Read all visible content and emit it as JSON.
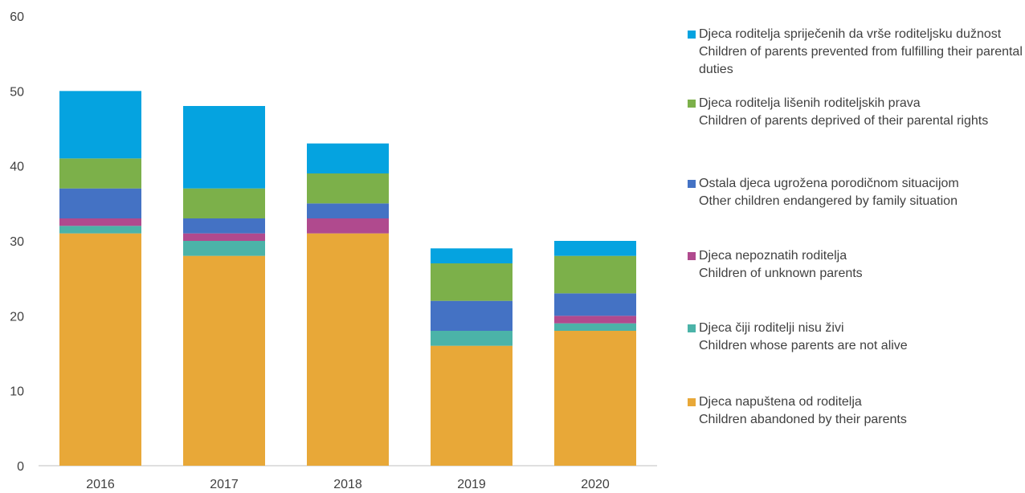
{
  "chart_data": {
    "type": "bar",
    "stacked": true,
    "categories": [
      "2016",
      "2017",
      "2018",
      "2019",
      "2020"
    ],
    "ylim": [
      0,
      60
    ],
    "yticks": [
      0,
      10,
      20,
      30,
      40,
      50,
      60
    ],
    "grid": false,
    "legend_position": "right",
    "series": [
      {
        "name": "Djeca napuštena od roditelja",
        "name_en": "Children abandoned by their parents",
        "color": "#E8A838",
        "values": [
          31,
          28,
          31,
          16,
          18
        ]
      },
      {
        "name": "Djeca čiji roditelji nisu živi",
        "name_en": "Children  whose parents are not alive",
        "color": "#4BB3A8",
        "values": [
          1,
          2,
          0,
          2,
          1
        ]
      },
      {
        "name": "Djeca nepoznatih roditelja",
        "name_en": "Children of unknown parents",
        "color": "#B04A8E",
        "values": [
          1,
          1,
          2,
          0,
          1
        ]
      },
      {
        "name": "Ostala djeca ugrožena porodičnom situacijom",
        "name_en": "Other children endangered by family situation",
        "color": "#4472C4",
        "values": [
          4,
          2,
          2,
          4,
          3
        ]
      },
      {
        "name": "Djeca roditelja lišenih roditeljskih prava",
        "name_en": "Children of parents deprived of their parental rights",
        "color": "#7CB04A",
        "values": [
          4,
          4,
          4,
          5,
          5
        ]
      },
      {
        "name": "Djeca roditelja spriječenih da vrše roditeljsku dužnost",
        "name_en": "Children of parents prevented from fulfilling their parental duties",
        "color": "#05A3E0",
        "values": [
          9,
          11,
          4,
          2,
          2
        ]
      }
    ]
  }
}
